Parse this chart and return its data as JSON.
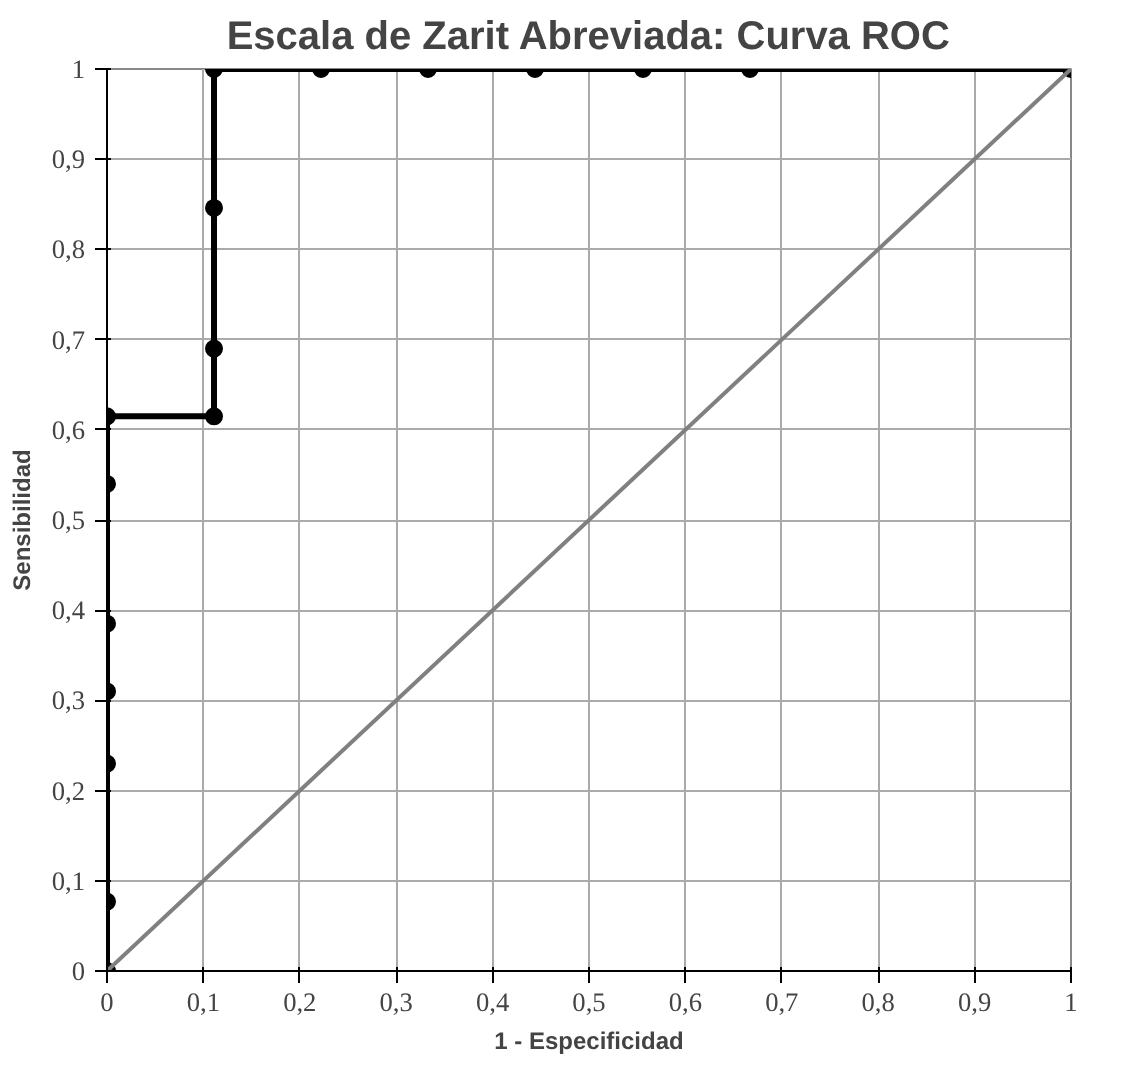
{
  "chart_data": {
    "type": "line",
    "title": "Escala de Zarit Abreviada: Curva ROC",
    "xlabel": "1 - Especificidad",
    "ylabel": "Sensibilidad",
    "series": [
      {
        "color": "#000000",
        "marker": "circle",
        "x": [
          0,
          0,
          0,
          0,
          0,
          0,
          0,
          0.111,
          0.111,
          0.111,
          0.111,
          0.222,
          0.333,
          0.444,
          0.556,
          0.667,
          1
        ],
        "values": [
          0,
          0.077,
          0.23,
          0.31,
          0.385,
          0.54,
          0.615,
          0.615,
          0.69,
          0.846,
          1,
          1,
          1,
          1,
          1,
          1,
          1
        ]
      },
      {
        "color": "#808080",
        "marker": "none",
        "x": [
          0,
          1
        ],
        "values": [
          0,
          1
        ]
      }
    ],
    "xlim": [
      0,
      1
    ],
    "ylim": [
      0,
      1
    ],
    "xticks": [
      0,
      {
        "value": 0.1,
        "label": "0,1"
      },
      {
        "value": 0.2,
        "label": "0,2"
      },
      {
        "value": 0.3,
        "label": "0,3"
      },
      {
        "value": 0.4,
        "label": "0,4"
      },
      {
        "value": 0.5,
        "label": "0,5"
      },
      {
        "value": 0.6,
        "label": "0,6"
      },
      {
        "value": 0.7,
        "label": "0,7"
      },
      {
        "value": 0.8,
        "label": "0,8"
      },
      {
        "value": 0.9,
        "label": "0,9"
      },
      1
    ],
    "yticks": [
      0,
      {
        "value": 0.1,
        "label": "0,1"
      },
      {
        "value": 0.2,
        "label": "0,2"
      },
      {
        "value": 0.3,
        "label": "0,3"
      },
      {
        "value": 0.4,
        "label": "0,4"
      },
      {
        "value": 0.5,
        "label": "0,5"
      },
      {
        "value": 0.6,
        "label": "0,6"
      },
      {
        "value": 0.7,
        "label": "0,7"
      },
      {
        "value": 0.8,
        "label": "0,8"
      },
      {
        "value": 0.9,
        "label": "0,9"
      },
      1
    ],
    "grid": true,
    "line_style": "solid"
  }
}
